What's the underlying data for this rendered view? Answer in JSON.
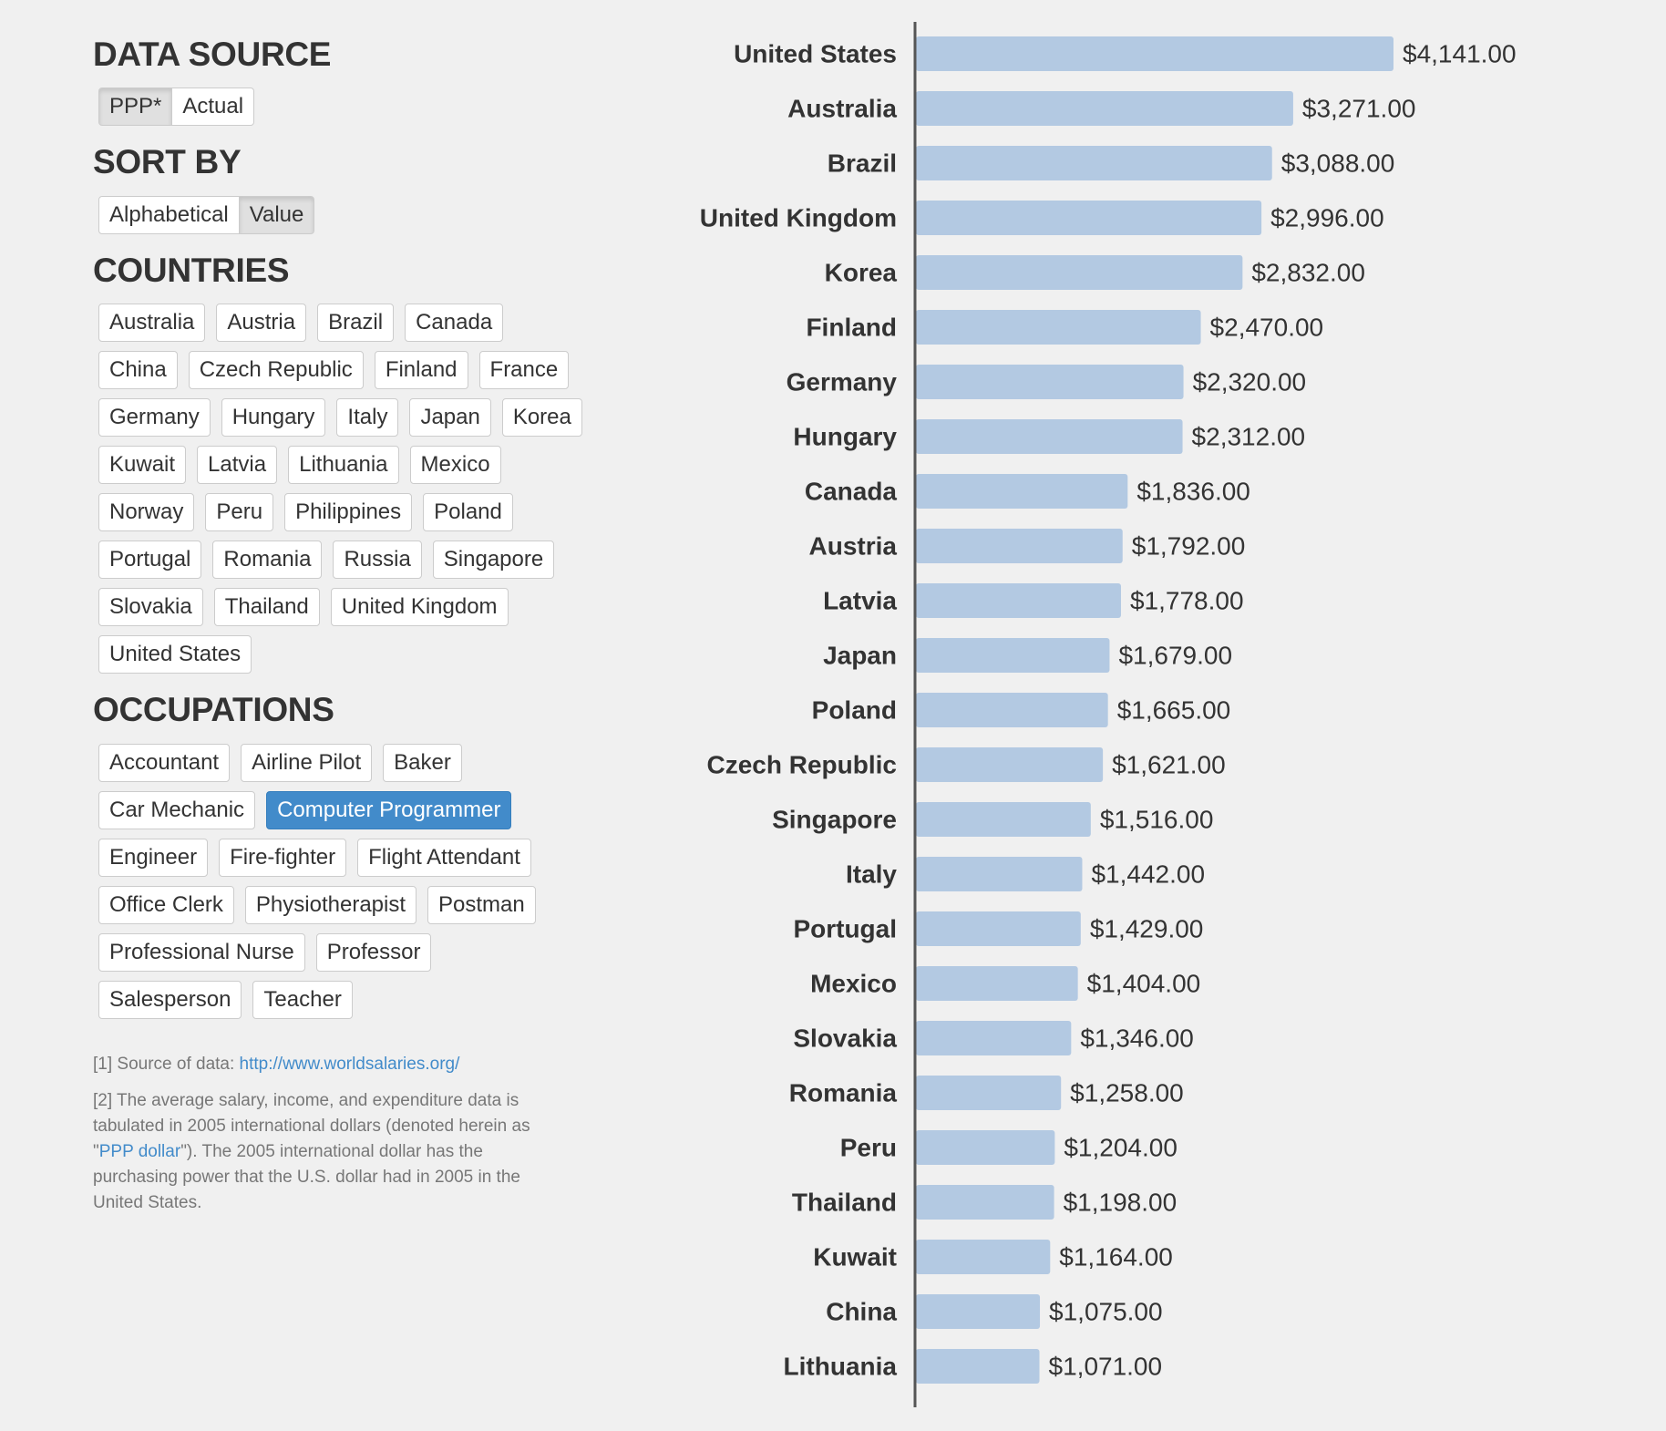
{
  "data_source": {
    "heading": "DATA SOURCE",
    "options": [
      {
        "label": "PPP*",
        "active": true
      },
      {
        "label": "Actual",
        "active": false
      }
    ]
  },
  "sort_by": {
    "heading": "SORT BY",
    "options": [
      {
        "label": "Alphabetical",
        "active": false
      },
      {
        "label": "Value",
        "active": true
      }
    ]
  },
  "countries": {
    "heading": "COUNTRIES",
    "items": [
      "Australia",
      "Austria",
      "Brazil",
      "Canada",
      "China",
      "Czech Republic",
      "Finland",
      "France",
      "Germany",
      "Hungary",
      "Italy",
      "Japan",
      "Korea",
      "Kuwait",
      "Latvia",
      "Lithuania",
      "Mexico",
      "Norway",
      "Peru",
      "Philippines",
      "Poland",
      "Portugal",
      "Romania",
      "Russia",
      "Singapore",
      "Slovakia",
      "Thailand",
      "United Kingdom",
      "United States"
    ]
  },
  "occupations": {
    "heading": "OCCUPATIONS",
    "items": [
      "Accountant",
      "Airline Pilot",
      "Baker",
      "Car Mechanic",
      "Computer Programmer",
      "Engineer",
      "Fire-fighter",
      "Flight Attendant",
      "Office Clerk",
      "Physiotherapist",
      "Postman",
      "Professional Nurse",
      "Professor",
      "Salesperson",
      "Teacher"
    ],
    "selected": "Computer Programmer"
  },
  "notes": {
    "note1_prefix": "[1] Source of data: ",
    "note1_link": "http://www.worldsalaries.org/",
    "note2_prefix": "[2] The average salary, income, and expenditure data is tabulated in 2005 international dollars (denoted herein as \"",
    "note2_link": "PPP dollar",
    "note2_suffix": "\"). The 2005 international dollar has the purchasing power that the U.S. dollar had in 2005 in the United States."
  },
  "colors": {
    "bar": "#b3c9e2",
    "axis": "#555555",
    "primary": "#428bca"
  },
  "chart_data": {
    "type": "bar",
    "orientation": "horizontal",
    "categories": [
      "United States",
      "Australia",
      "Brazil",
      "United Kingdom",
      "Korea",
      "Finland",
      "Germany",
      "Hungary",
      "Canada",
      "Austria",
      "Latvia",
      "Japan",
      "Poland",
      "Czech Republic",
      "Singapore",
      "Italy",
      "Portugal",
      "Mexico",
      "Slovakia",
      "Romania",
      "Peru",
      "Thailand",
      "Kuwait",
      "China",
      "Lithuania"
    ],
    "values": [
      4141,
      3271,
      3088,
      2996,
      2832,
      2470,
      2320,
      2312,
      1836,
      1792,
      1778,
      1679,
      1665,
      1621,
      1516,
      1442,
      1429,
      1404,
      1346,
      1258,
      1204,
      1198,
      1164,
      1075,
      1071
    ],
    "value_labels": [
      "$4,141.00",
      "$3,271.00",
      "$3,088.00",
      "$2,996.00",
      "$2,832.00",
      "$2,470.00",
      "$2,320.00",
      "$2,312.00",
      "$1,836.00",
      "$1,792.00",
      "$1,778.00",
      "$1,679.00",
      "$1,665.00",
      "$1,621.00",
      "$1,516.00",
      "$1,442.00",
      "$1,429.00",
      "$1,404.00",
      "$1,346.00",
      "$1,258.00",
      "$1,204.00",
      "$1,198.00",
      "$1,164.00",
      "$1,075.00",
      "$1,071.00"
    ],
    "xlim": [
      0,
      4141
    ]
  }
}
